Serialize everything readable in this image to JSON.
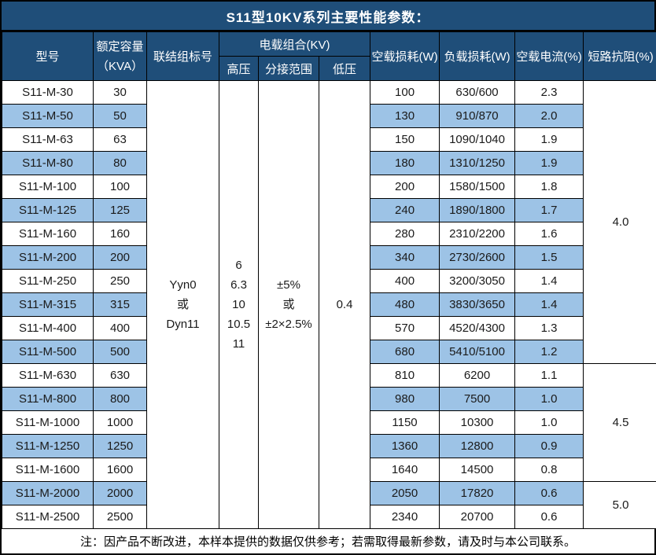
{
  "title": "S11型10KV系列主要性能参数：",
  "colors": {
    "header_bg": "#1F4E79",
    "header_text": "#FFFFFF",
    "row_highlight": "#9DC3E6",
    "border": "#000000",
    "body_text": "#1A1A1A"
  },
  "header": {
    "model": "型号",
    "capacity": "额定容量\n（KVA）",
    "connection": "联结组标号",
    "voltage_group": "电载组合(KV)",
    "hv": "高压",
    "tap_range": "分接范围",
    "lv": "低压",
    "no_load_loss": "空载损耗(W)",
    "load_loss": "负载损耗(W)",
    "no_load_current": "空载电流(%)",
    "impedance": "短路抗阻(%)"
  },
  "merged": {
    "connection": "Yyn0\n或\nDyn11",
    "hv": "6\n6.3\n10\n10.5\n11",
    "tap_range": "±5%\n或\n±2×2.5%",
    "lv": "0.4"
  },
  "impedance_groups": [
    {
      "value": "4.0",
      "row_span": 12
    },
    {
      "value": "4.5",
      "row_span": 5
    },
    {
      "value": "5.0",
      "row_span": 2
    }
  ],
  "rows": [
    {
      "model": "S11-M-30",
      "kva": "30",
      "no_load_loss": "100",
      "load_loss": "630/600",
      "no_load_current": "2.3",
      "shaded": false
    },
    {
      "model": "S11-M-50",
      "kva": "50",
      "no_load_loss": "130",
      "load_loss": "910/870",
      "no_load_current": "2.0",
      "shaded": true
    },
    {
      "model": "S11-M-63",
      "kva": "63",
      "no_load_loss": "150",
      "load_loss": "1090/1040",
      "no_load_current": "1.9",
      "shaded": false
    },
    {
      "model": "S11-M-80",
      "kva": "80",
      "no_load_loss": "180",
      "load_loss": "1310/1250",
      "no_load_current": "1.9",
      "shaded": true
    },
    {
      "model": "S11-M-100",
      "kva": "100",
      "no_load_loss": "200",
      "load_loss": "1580/1500",
      "no_load_current": "1.8",
      "shaded": false
    },
    {
      "model": "S11-M-125",
      "kva": "125",
      "no_load_loss": "240",
      "load_loss": "1890/1800",
      "no_load_current": "1.7",
      "shaded": true
    },
    {
      "model": "S11-M-160",
      "kva": "160",
      "no_load_loss": "280",
      "load_loss": "2310/2200",
      "no_load_current": "1.6",
      "shaded": false
    },
    {
      "model": "S11-M-200",
      "kva": "200",
      "no_load_loss": "340",
      "load_loss": "2730/2600",
      "no_load_current": "1.5",
      "shaded": true
    },
    {
      "model": "S11-M-250",
      "kva": "250",
      "no_load_loss": "400",
      "load_loss": "3200/3050",
      "no_load_current": "1.4",
      "shaded": false
    },
    {
      "model": "S11-M-315",
      "kva": "315",
      "no_load_loss": "480",
      "load_loss": "3830/3650",
      "no_load_current": "1.4",
      "shaded": true
    },
    {
      "model": "S11-M-400",
      "kva": "400",
      "no_load_loss": "570",
      "load_loss": "4520/4300",
      "no_load_current": "1.3",
      "shaded": false
    },
    {
      "model": "S11-M-500",
      "kva": "500",
      "no_load_loss": "680",
      "load_loss": "5410/5100",
      "no_load_current": "1.2",
      "shaded": true
    },
    {
      "model": "S11-M-630",
      "kva": "630",
      "no_load_loss": "810",
      "load_loss": "6200",
      "no_load_current": "1.1",
      "shaded": false
    },
    {
      "model": "S11-M-800",
      "kva": "800",
      "no_load_loss": "980",
      "load_loss": "7500",
      "no_load_current": "1.0",
      "shaded": true
    },
    {
      "model": "S11-M-1000",
      "kva": "1000",
      "no_load_loss": "1150",
      "load_loss": "10300",
      "no_load_current": "1.0",
      "shaded": false
    },
    {
      "model": "S11-M-1250",
      "kva": "1250",
      "no_load_loss": "1360",
      "load_loss": "12800",
      "no_load_current": "0.9",
      "shaded": true
    },
    {
      "model": "S11-M-1600",
      "kva": "1600",
      "no_load_loss": "1640",
      "load_loss": "14500",
      "no_load_current": "0.8",
      "shaded": false
    },
    {
      "model": "S11-M-2000",
      "kva": "2000",
      "no_load_loss": "2050",
      "load_loss": "17820",
      "no_load_current": "0.6",
      "shaded": true
    },
    {
      "model": "S11-M-2500",
      "kva": "2500",
      "no_load_loss": "2340",
      "load_loss": "20700",
      "no_load_current": "0.6",
      "shaded": false
    }
  ],
  "footer_note": "注：因产品不断改进，本样本提供的数据仅供参考；若需取得最新参数，请及时与本公司联系。"
}
